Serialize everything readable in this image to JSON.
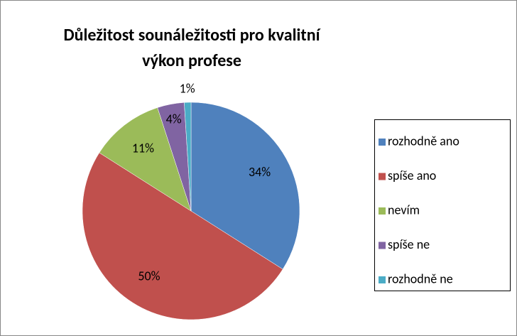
{
  "chart_data": {
    "type": "pie",
    "title": "Důležitost sounáležitosti pro kvalitní výkon profese",
    "categories": [
      "rozhodně ano",
      "spíše ano",
      "nevím",
      "spíše ne",
      "rozhodně ne"
    ],
    "values": [
      34,
      50,
      11,
      4,
      1
    ],
    "value_labels": [
      "34%",
      "50%",
      "11%",
      "4%",
      "1%"
    ],
    "colors": [
      "#4f81bd",
      "#c0504d",
      "#9bbb59",
      "#8064a2",
      "#4bacc6"
    ],
    "legend": "right"
  }
}
